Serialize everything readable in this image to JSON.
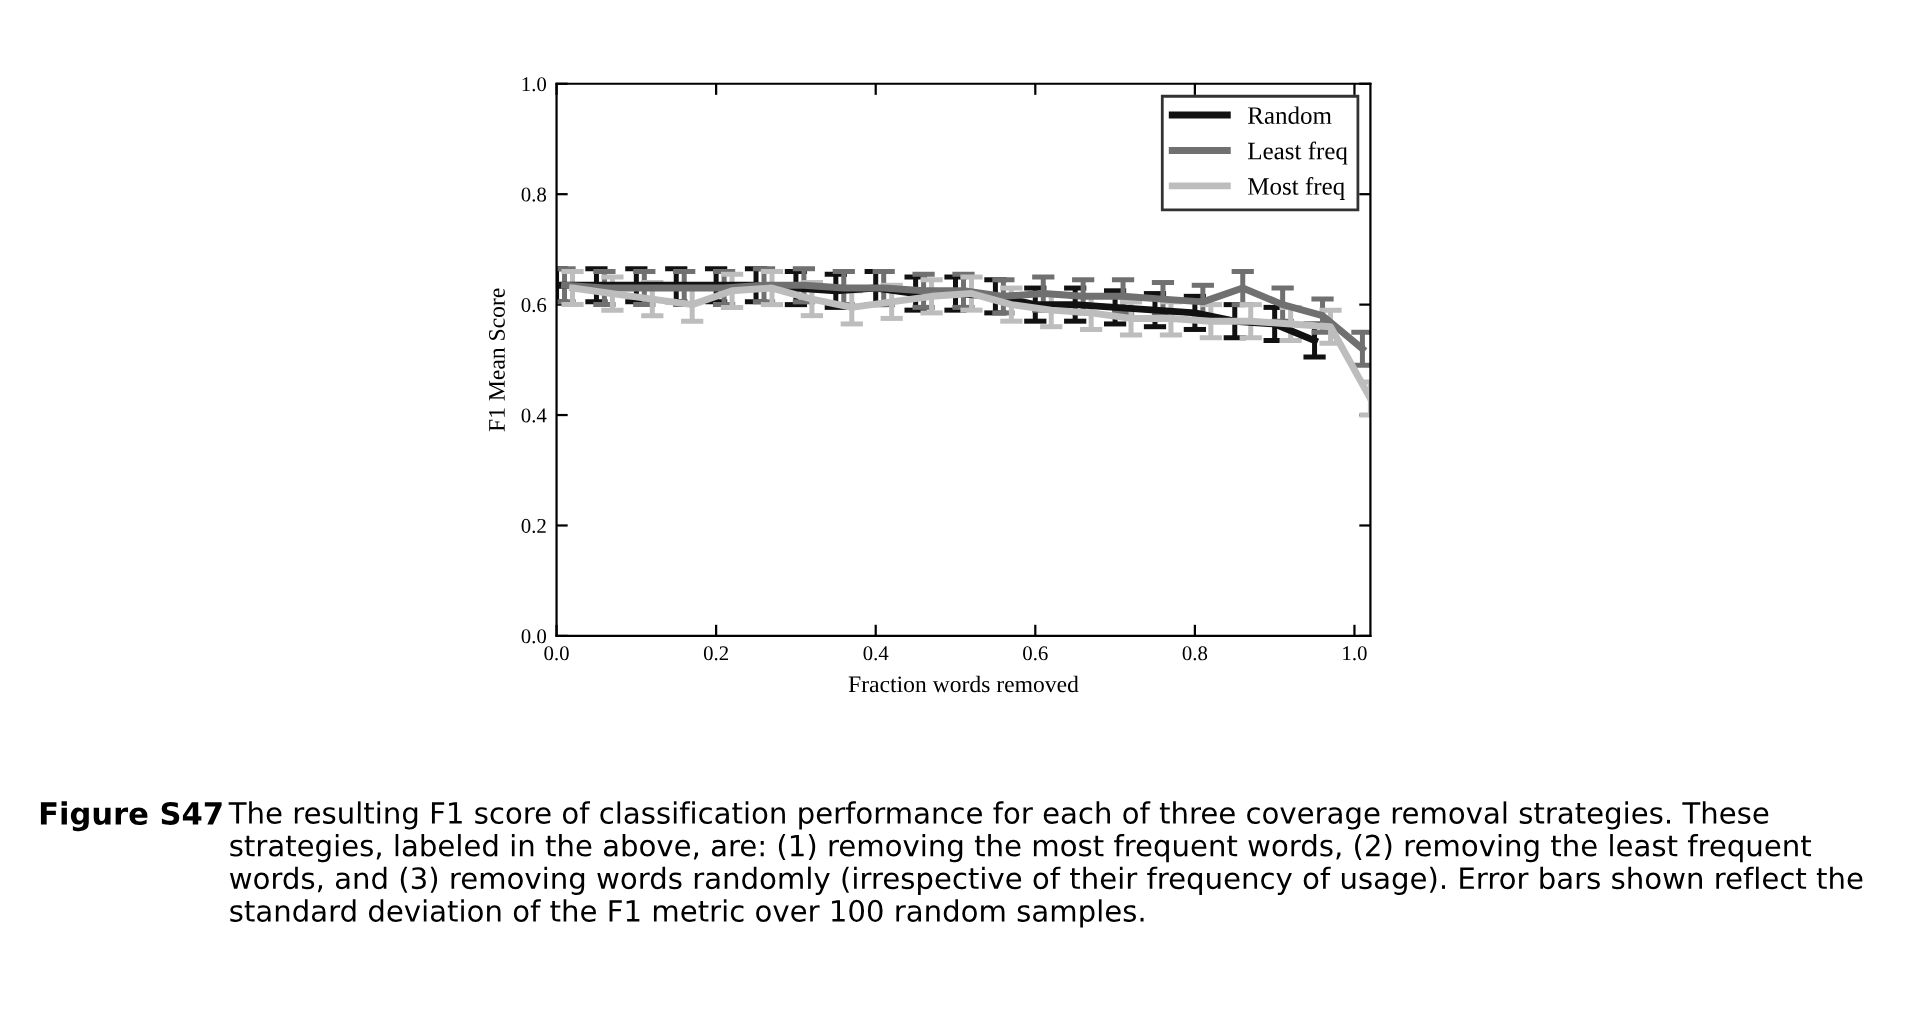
{
  "chart_data": {
    "type": "line",
    "xlabel": "Fraction words removed",
    "ylabel": "F1 Mean Score",
    "xlim": [
      0,
      1.02
    ],
    "ylim": [
      0,
      1.0
    ],
    "xticks": [
      {
        "value": 0,
        "label": "0.0"
      },
      0.2,
      0.4,
      0.6,
      0.8,
      {
        "value": 1.0,
        "label": "1.0"
      }
    ],
    "yticks": [
      {
        "value": 0,
        "label": "0.0"
      },
      0.2,
      0.4,
      0.6,
      0.8,
      {
        "value": 1.0,
        "label": "1.0"
      }
    ],
    "legend": "top right",
    "grid": false,
    "marker": "none",
    "line_style": "solid",
    "series": [
      {
        "name": "Random",
        "color": "#111111",
        "x": [
          0,
          0.05,
          0.1,
          0.15,
          0.2,
          0.25,
          0.3,
          0.35,
          0.4,
          0.45,
          0.5,
          0.55,
          0.6,
          0.65,
          0.7,
          0.75,
          0.8,
          0.85,
          0.9,
          0.95
        ],
        "values": [
          0.635,
          0.635,
          0.635,
          0.635,
          0.635,
          0.635,
          0.63,
          0.625,
          0.63,
          0.62,
          0.62,
          0.615,
          0.6,
          0.6,
          0.595,
          0.59,
          0.585,
          0.57,
          0.565,
          0.535
        ],
        "errors": [
          0.03,
          0.03,
          0.03,
          0.03,
          0.03,
          0.03,
          0.03,
          0.03,
          0.03,
          0.03,
          0.03,
          0.03,
          0.03,
          0.03,
          0.03,
          0.03,
          0.03,
          0.03,
          0.03,
          0.03
        ]
      },
      {
        "name": "Least freq",
        "color": "#707070",
        "x": [
          0.01,
          0.06,
          0.11,
          0.16,
          0.21,
          0.26,
          0.31,
          0.36,
          0.41,
          0.46,
          0.51,
          0.56,
          0.61,
          0.66,
          0.71,
          0.76,
          0.81,
          0.86,
          0.91,
          0.96,
          1.01
        ],
        "values": [
          0.635,
          0.63,
          0.63,
          0.63,
          0.63,
          0.635,
          0.635,
          0.63,
          0.63,
          0.625,
          0.625,
          0.615,
          0.62,
          0.615,
          0.615,
          0.61,
          0.605,
          0.63,
          0.6,
          0.58,
          0.52
        ],
        "errors": [
          0.03,
          0.03,
          0.03,
          0.03,
          0.03,
          0.03,
          0.03,
          0.03,
          0.03,
          0.03,
          0.03,
          0.03,
          0.03,
          0.03,
          0.03,
          0.03,
          0.03,
          0.03,
          0.03,
          0.03,
          0.03
        ]
      },
      {
        "name": "Most freq",
        "color": "#bdbdbd",
        "x": [
          0.02,
          0.07,
          0.12,
          0.17,
          0.22,
          0.27,
          0.32,
          0.37,
          0.42,
          0.47,
          0.52,
          0.57,
          0.62,
          0.67,
          0.72,
          0.77,
          0.82,
          0.87,
          0.92,
          0.97,
          1.02
        ],
        "values": [
          0.63,
          0.62,
          0.61,
          0.6,
          0.625,
          0.63,
          0.61,
          0.595,
          0.605,
          0.615,
          0.62,
          0.6,
          0.59,
          0.585,
          0.575,
          0.575,
          0.57,
          0.57,
          0.565,
          0.56,
          0.43
        ],
        "errors": [
          0.03,
          0.03,
          0.03,
          0.03,
          0.03,
          0.03,
          0.03,
          0.03,
          0.03,
          0.03,
          0.03,
          0.03,
          0.03,
          0.03,
          0.03,
          0.03,
          0.03,
          0.03,
          0.03,
          0.03,
          0.03
        ]
      }
    ],
    "annotations": [
      "Figure S47",
      "The resulting F1 score of classification performance for each of three coverage removal strategies. These strategies, labeled in the above, are: (1) removing the most frequent words, (2) removing the least frequent words, and (3) removing words randomly (irrespective of their frequency of usage). Error bars shown reflect the standard deviation of the F1 metric over 100 random samples."
    ]
  }
}
